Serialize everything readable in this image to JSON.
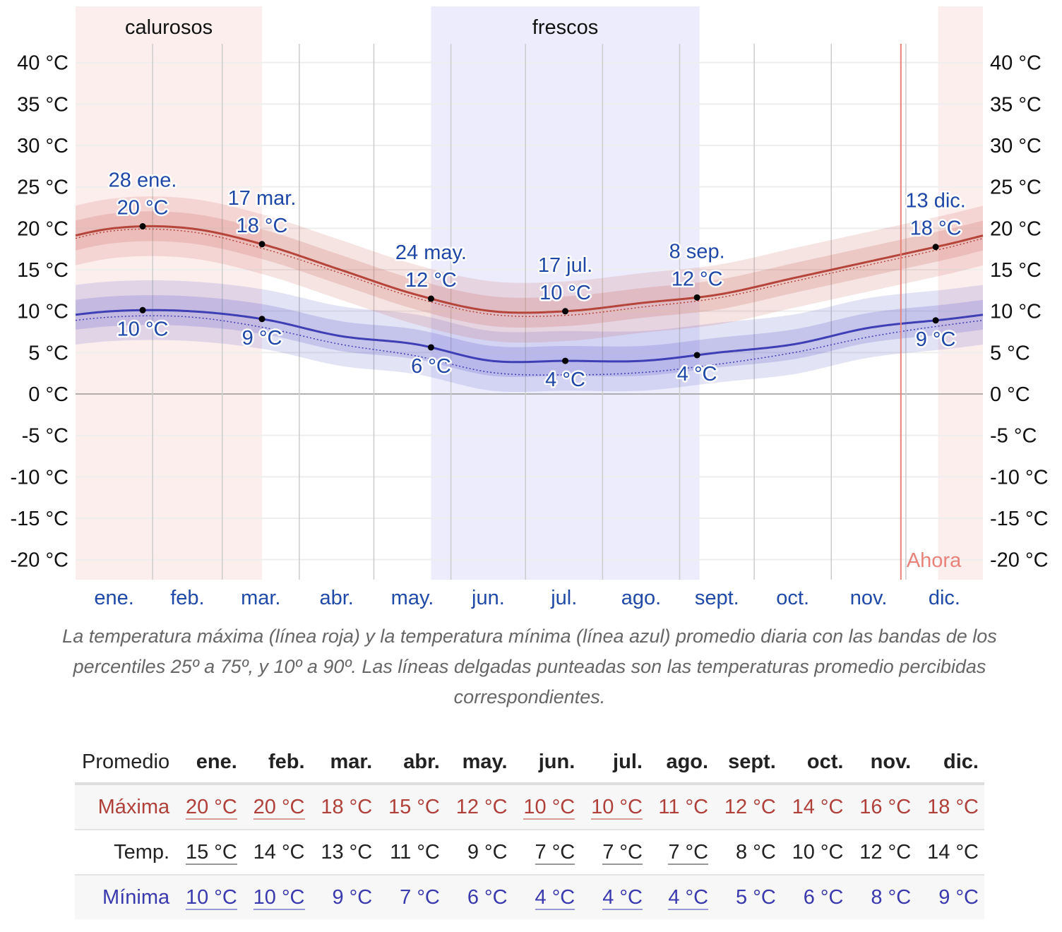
{
  "chart_data": {
    "type": "line",
    "title": "",
    "ylabel": "°C",
    "ylim": [
      -20,
      40
    ],
    "yticks": [
      40,
      35,
      30,
      25,
      20,
      15,
      10,
      5,
      0,
      -5,
      -10,
      -15,
      -20
    ],
    "ytick_labels": [
      "40 °C",
      "35 °C",
      "30 °C",
      "25 °C",
      "20 °C",
      "15 °C",
      "10 °C",
      "5 °C",
      "0 °C",
      "-5 °C",
      "-10 °C",
      "-15 °C",
      "-20 °C"
    ],
    "categories": [
      "ene.",
      "feb.",
      "mar.",
      "abr.",
      "may.",
      "jun.",
      "jul.",
      "ago.",
      "sept.",
      "oct.",
      "nov.",
      "dic."
    ],
    "series": [
      {
        "name": "Máxima",
        "color": "#b5443b",
        "values": [
          20,
          20,
          18,
          15,
          12,
          10,
          10,
          11,
          12,
          14,
          16,
          18
        ]
      },
      {
        "name": "Mínima",
        "color": "#3f3fb5",
        "values": [
          10,
          10,
          9,
          7,
          6,
          4,
          4,
          4,
          5,
          6,
          8,
          9
        ]
      },
      {
        "name": "Máxima percibida",
        "color": "#b5443b",
        "style": "dotted",
        "values": [
          19.7,
          19.6,
          17.5,
          14.6,
          11.6,
          9.6,
          9.5,
          10.5,
          11.6,
          13.6,
          15.6,
          17.6
        ]
      },
      {
        "name": "Mínima percibida",
        "color": "#3f3fb5",
        "style": "dotted",
        "values": [
          9.3,
          9.3,
          8.0,
          6.0,
          4.6,
          2.6,
          2.3,
          2.6,
          3.6,
          5.0,
          6.9,
          8.3
        ]
      }
    ],
    "bands": {
      "p25_p75_halfwidth": 1.8,
      "p10_p90_halfwidth": 3.6
    },
    "seasons": [
      {
        "label": "calurosos",
        "start_day": 0,
        "end_day": 75,
        "color": "#fdeeee"
      },
      {
        "label": "frescos",
        "start_day": 143,
        "end_day": 251,
        "color": "#ececfd"
      },
      {
        "label": "",
        "start_day": 347,
        "end_day": 365,
        "color": "#fdeeee"
      }
    ],
    "now": {
      "label": "Ahora",
      "day": 332,
      "color": "#e8837b"
    },
    "annotations": [
      {
        "series": "max",
        "day": 27,
        "date": "28 ene.",
        "value": "20 °C"
      },
      {
        "series": "max",
        "day": 75,
        "date": "17 mar.",
        "value": "18 °C"
      },
      {
        "series": "max",
        "day": 143,
        "date": "24 may.",
        "value": "12 °C"
      },
      {
        "series": "max",
        "day": 197,
        "date": "17 jul.",
        "value": "10 °C"
      },
      {
        "series": "max",
        "day": 250,
        "date": "8 sep.",
        "value": "12 °C"
      },
      {
        "series": "max",
        "day": 346,
        "date": "13 dic.",
        "value": "18 °C"
      },
      {
        "series": "min",
        "day": 27,
        "value": "10 °C"
      },
      {
        "series": "min",
        "day": 75,
        "value": "9 °C"
      },
      {
        "series": "min",
        "day": 143,
        "value": "6 °C"
      },
      {
        "series": "min",
        "day": 197,
        "value": "4 °C"
      },
      {
        "series": "min",
        "day": 250,
        "value": "4 °C"
      },
      {
        "series": "min",
        "day": 346,
        "value": "9 °C"
      }
    ]
  },
  "caption": "La temperatura máxima (línea roja) y la temperatura mínima (línea azul) promedio diaria con las bandas de los percentiles 25º a 75º, y 10º a 90º. Las líneas delgadas punteadas son las temperaturas promedio percibidas correspondientes.",
  "table": {
    "header": "Promedio",
    "months": [
      "ene.",
      "feb.",
      "mar.",
      "abr.",
      "may.",
      "jun.",
      "jul.",
      "ago.",
      "sept.",
      "oct.",
      "nov.",
      "dic."
    ],
    "rows": [
      {
        "label": "Máxima",
        "cls": "max",
        "values": [
          "20 °C",
          "20 °C",
          "18 °C",
          "15 °C",
          "12 °C",
          "10 °C",
          "10 °C",
          "11 °C",
          "12 °C",
          "14 °C",
          "16 °C",
          "18 °C"
        ],
        "highlight": [
          true,
          true,
          false,
          false,
          false,
          true,
          true,
          false,
          false,
          false,
          false,
          false
        ]
      },
      {
        "label": "Temp.",
        "cls": "avg",
        "values": [
          "15 °C",
          "14 °C",
          "13 °C",
          "11 °C",
          "9 °C",
          "7 °C",
          "7 °C",
          "7 °C",
          "8 °C",
          "10 °C",
          "12 °C",
          "14 °C"
        ],
        "highlight": [
          true,
          false,
          false,
          false,
          false,
          true,
          true,
          true,
          false,
          false,
          false,
          false
        ]
      },
      {
        "label": "Mínima",
        "cls": "min",
        "values": [
          "10 °C",
          "10 °C",
          "9 °C",
          "7 °C",
          "6 °C",
          "4 °C",
          "4 °C",
          "4 °C",
          "5 °C",
          "6 °C",
          "8 °C",
          "9 °C"
        ],
        "highlight": [
          true,
          true,
          false,
          false,
          false,
          true,
          true,
          true,
          false,
          false,
          false,
          false
        ]
      }
    ]
  }
}
